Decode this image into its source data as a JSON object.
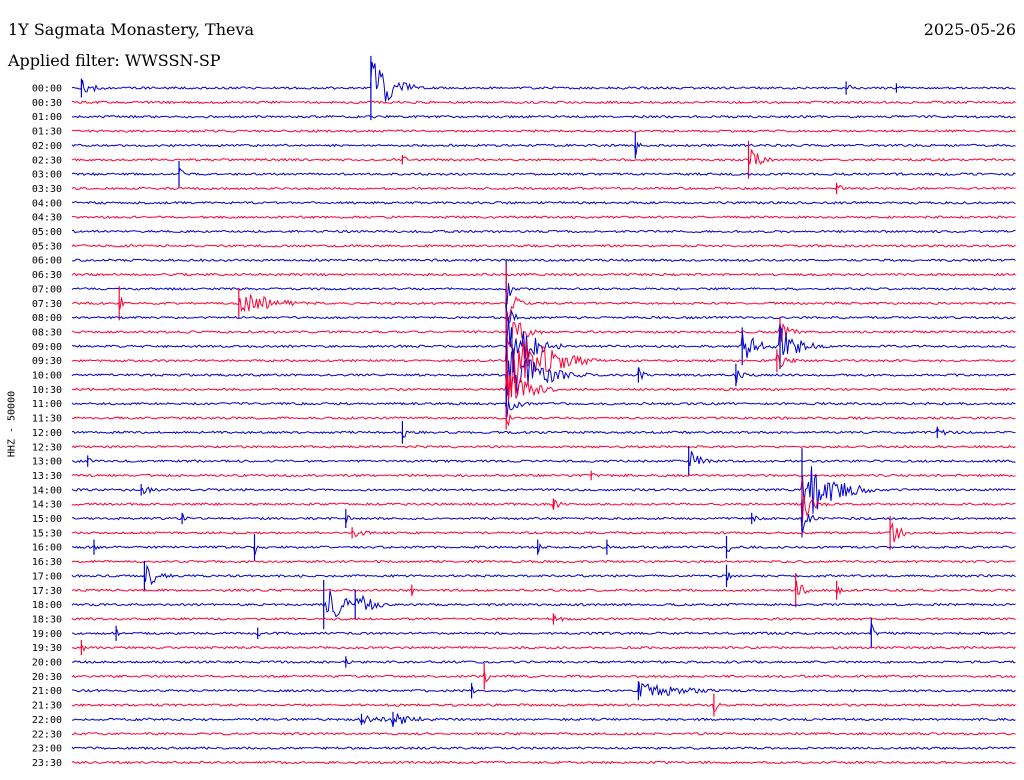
{
  "header": {
    "station": "1Y Sagmata Monastery, Theva",
    "date": "2025-05-26",
    "filter": "Applied filter: WWSSN-SP"
  },
  "chart_data": {
    "type": "helicorder",
    "ylabel": "HHZ - 50000",
    "x_range_minutes": [
      0,
      30
    ],
    "colors": [
      "#0000cc",
      "#ff0033"
    ],
    "rows": [
      {
        "label": "00:00",
        "events": [
          {
            "minute": 0.3,
            "amp": 0.5,
            "dur": 0.4
          },
          {
            "minute": 9.5,
            "amp": 1.7,
            "dur": 0.6
          },
          {
            "minute": 24.6,
            "amp": 0.35,
            "dur": 0.2
          },
          {
            "minute": 26.2,
            "amp": 0.25,
            "dur": 0.2
          }
        ]
      },
      {
        "label": "00:30",
        "events": []
      },
      {
        "label": "01:00",
        "events": []
      },
      {
        "label": "01:30",
        "events": []
      },
      {
        "label": "02:00",
        "events": [
          {
            "minute": 17.9,
            "amp": 0.7,
            "dur": 0.1
          }
        ]
      },
      {
        "label": "02:30",
        "events": [
          {
            "minute": 10.5,
            "amp": 0.25,
            "dur": 0.2
          },
          {
            "minute": 21.5,
            "amp": 1.0,
            "dur": 0.3
          }
        ]
      },
      {
        "label": "03:00",
        "events": [
          {
            "minute": 3.4,
            "amp": 0.7,
            "dur": 0.1
          }
        ]
      },
      {
        "label": "03:30",
        "events": [
          {
            "minute": 24.3,
            "amp": 0.3,
            "dur": 0.2
          }
        ]
      },
      {
        "label": "04:00",
        "events": []
      },
      {
        "label": "04:30",
        "events": []
      },
      {
        "label": "05:00",
        "events": []
      },
      {
        "label": "05:30",
        "events": []
      },
      {
        "label": "06:00",
        "events": []
      },
      {
        "label": "06:30",
        "events": []
      },
      {
        "label": "07:00",
        "events": [
          {
            "minute": 13.8,
            "amp": 1.5,
            "dur": 0.1
          }
        ]
      },
      {
        "label": "07:30",
        "events": [
          {
            "minute": 1.5,
            "amp": 0.9,
            "dur": 0.1
          },
          {
            "minute": 5.3,
            "amp": 0.8,
            "dur": 1.0
          },
          {
            "minute": 13.8,
            "amp": 2.0,
            "dur": 0.2
          }
        ]
      },
      {
        "label": "08:00",
        "events": [
          {
            "minute": 13.8,
            "amp": 1.0,
            "dur": 0.2
          }
        ]
      },
      {
        "label": "08:30",
        "events": [
          {
            "minute": 13.8,
            "amp": 1.6,
            "dur": 0.4
          },
          {
            "minute": 22.5,
            "amp": 0.8,
            "dur": 0.3
          }
        ]
      },
      {
        "label": "09:00",
        "events": [
          {
            "minute": 13.8,
            "amp": 2.3,
            "dur": 0.6
          },
          {
            "minute": 21.3,
            "amp": 1.0,
            "dur": 0.5
          },
          {
            "minute": 22.5,
            "amp": 1.2,
            "dur": 0.6
          }
        ]
      },
      {
        "label": "09:30",
        "events": [
          {
            "minute": 13.8,
            "amp": 2.6,
            "dur": 1.0
          },
          {
            "minute": 22.4,
            "amp": 0.6,
            "dur": 0.3
          }
        ]
      },
      {
        "label": "10:00",
        "events": [
          {
            "minute": 13.8,
            "amp": 2.0,
            "dur": 0.9
          },
          {
            "minute": 18.0,
            "amp": 0.4,
            "dur": 0.2
          },
          {
            "minute": 21.1,
            "amp": 0.6,
            "dur": 0.2
          }
        ]
      },
      {
        "label": "10:30",
        "events": [
          {
            "minute": 13.8,
            "amp": 1.4,
            "dur": 0.6
          }
        ]
      },
      {
        "label": "11:00",
        "events": [
          {
            "minute": 13.8,
            "amp": 0.9,
            "dur": 0.3
          }
        ]
      },
      {
        "label": "11:30",
        "events": [
          {
            "minute": 13.8,
            "amp": 0.6,
            "dur": 0.2
          }
        ]
      },
      {
        "label": "12:00",
        "events": [
          {
            "minute": 10.5,
            "amp": 0.6,
            "dur": 0.1
          },
          {
            "minute": 27.5,
            "amp": 0.3,
            "dur": 0.4
          }
        ]
      },
      {
        "label": "12:30",
        "events": []
      },
      {
        "label": "13:00",
        "events": [
          {
            "minute": 0.5,
            "amp": 0.3,
            "dur": 0.1
          },
          {
            "minute": 19.6,
            "amp": 0.8,
            "dur": 0.3
          }
        ]
      },
      {
        "label": "13:30",
        "events": [
          {
            "minute": 16.5,
            "amp": 0.25,
            "dur": 0.2
          }
        ]
      },
      {
        "label": "14:00",
        "events": [
          {
            "minute": 2.2,
            "amp": 0.3,
            "dur": 0.4
          },
          {
            "minute": 23.2,
            "amp": 2.2,
            "dur": 0.8
          }
        ]
      },
      {
        "label": "14:30",
        "events": [
          {
            "minute": 15.3,
            "amp": 0.3,
            "dur": 0.3
          },
          {
            "minute": 23.2,
            "amp": 1.4,
            "dur": 0.3
          }
        ]
      },
      {
        "label": "15:00",
        "events": [
          {
            "minute": 3.5,
            "amp": 0.3,
            "dur": 0.2
          },
          {
            "minute": 8.7,
            "amp": 0.5,
            "dur": 0.1
          },
          {
            "minute": 21.6,
            "amp": 0.3,
            "dur": 0.2
          },
          {
            "minute": 23.2,
            "amp": 1.0,
            "dur": 0.2
          }
        ]
      },
      {
        "label": "15:30",
        "events": [
          {
            "minute": 8.9,
            "amp": 0.3,
            "dur": 0.5
          },
          {
            "minute": 26.0,
            "amp": 0.9,
            "dur": 0.3
          }
        ]
      },
      {
        "label": "16:00",
        "events": [
          {
            "minute": 0.7,
            "amp": 0.4,
            "dur": 0.1
          },
          {
            "minute": 5.8,
            "amp": 0.7,
            "dur": 0.1
          },
          {
            "minute": 14.8,
            "amp": 0.4,
            "dur": 0.1
          },
          {
            "minute": 17.0,
            "amp": 0.4,
            "dur": 0.1
          },
          {
            "minute": 20.8,
            "amp": 0.6,
            "dur": 0.1
          }
        ]
      },
      {
        "label": "16:30",
        "events": []
      },
      {
        "label": "17:00",
        "events": [
          {
            "minute": 2.3,
            "amp": 0.8,
            "dur": 0.4
          },
          {
            "minute": 20.8,
            "amp": 0.6,
            "dur": 0.1
          }
        ]
      },
      {
        "label": "17:30",
        "events": [
          {
            "minute": 10.8,
            "amp": 0.3,
            "dur": 0.1
          },
          {
            "minute": 23.0,
            "amp": 0.9,
            "dur": 0.2
          },
          {
            "minute": 24.3,
            "amp": 0.5,
            "dur": 0.1
          }
        ]
      },
      {
        "label": "18:00",
        "events": [
          {
            "minute": 8.0,
            "amp": 1.3,
            "dur": 0.6
          },
          {
            "minute": 9.0,
            "amp": 0.8,
            "dur": 0.5
          }
        ]
      },
      {
        "label": "18:30",
        "events": [
          {
            "minute": 15.3,
            "amp": 0.3,
            "dur": 0.3
          }
        ]
      },
      {
        "label": "19:00",
        "events": [
          {
            "minute": 1.4,
            "amp": 0.4,
            "dur": 0.1
          },
          {
            "minute": 5.9,
            "amp": 0.3,
            "dur": 0.1
          },
          {
            "minute": 25.4,
            "amp": 0.8,
            "dur": 0.1
          }
        ]
      },
      {
        "label": "19:30",
        "events": [
          {
            "minute": 0.3,
            "amp": 0.4,
            "dur": 0.1
          }
        ]
      },
      {
        "label": "20:00",
        "events": [
          {
            "minute": 8.7,
            "amp": 0.3,
            "dur": 0.1
          }
        ]
      },
      {
        "label": "20:30",
        "events": [
          {
            "minute": 13.1,
            "amp": 0.7,
            "dur": 0.1
          }
        ]
      },
      {
        "label": "21:00",
        "events": [
          {
            "minute": 12.7,
            "amp": 0.4,
            "dur": 0.1
          },
          {
            "minute": 18.0,
            "amp": 0.5,
            "dur": 1.4
          }
        ]
      },
      {
        "label": "21:30",
        "events": [
          {
            "minute": 20.4,
            "amp": 0.6,
            "dur": 0.1
          }
        ]
      },
      {
        "label": "22:00",
        "events": [
          {
            "minute": 9.2,
            "amp": 0.3,
            "dur": 0.7
          },
          {
            "minute": 10.2,
            "amp": 0.4,
            "dur": 0.8
          }
        ]
      },
      {
        "label": "22:30",
        "events": []
      },
      {
        "label": "23:00",
        "events": []
      },
      {
        "label": "23:30",
        "events": []
      }
    ]
  }
}
